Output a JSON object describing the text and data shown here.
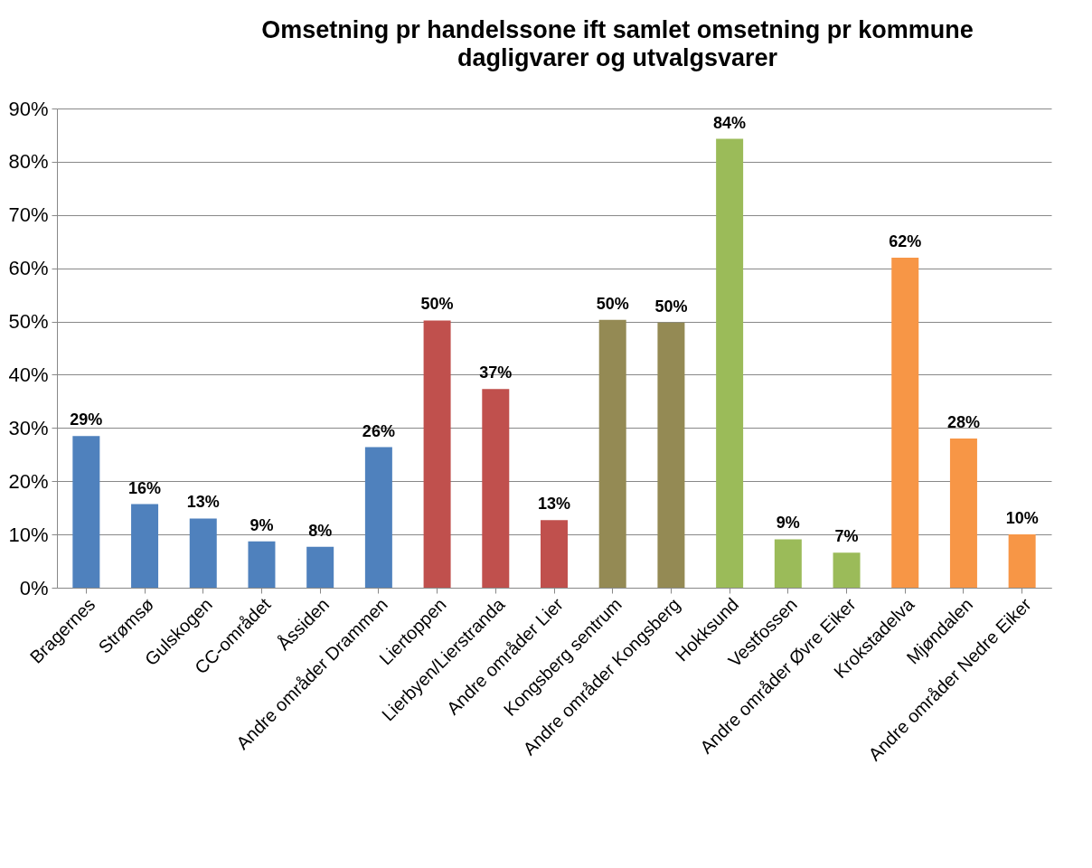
{
  "chart_data": {
    "type": "bar",
    "title": "Omsetning pr handelssone ift samlet omsetning pr kommune",
    "subtitle": "dagligvarer og utvalgsvarer",
    "categories": [
      "Bragernes",
      "Strømsø",
      "Gulskogen",
      "CC-området",
      "Åssiden",
      "Andre områder Drammen",
      "Liertoppen",
      "Lierbyen/Lierstranda",
      "Andre områder Lier",
      "Kongsberg sentrum",
      "Andre områder Kongsberg",
      "Hokksund",
      "Vestfossen",
      "Andre områder Øvre Eiker",
      "Krokstadelva",
      "Mjøndalen",
      "Andre områder Nedre Eiker"
    ],
    "values": [
      28.5,
      15.7,
      13,
      8.7,
      7.7,
      26.4,
      50.2,
      37.3,
      12.7,
      50.3,
      49.8,
      84.3,
      9.1,
      6.6,
      62,
      28,
      10
    ],
    "value_labels": [
      "29%",
      "16%",
      "13%",
      "9%",
      "8%",
      "26%",
      "50%",
      "37%",
      "13%",
      "50%",
      "50%",
      "84%",
      "9%",
      "7%",
      "62%",
      "28%",
      "10%"
    ],
    "colors": [
      "#4f81bd",
      "#4f81bd",
      "#4f81bd",
      "#4f81bd",
      "#4f81bd",
      "#4f81bd",
      "#c0504d",
      "#c0504d",
      "#c0504d",
      "#948a54",
      "#948a54",
      "#9bbb59",
      "#9bbb59",
      "#9bbb59",
      "#f79646",
      "#f79646",
      "#f79646"
    ],
    "ylim": [
      0,
      90
    ],
    "yticks": [
      {
        "value": 0,
        "label": "0%"
      },
      {
        "value": 10,
        "label": "10%"
      },
      {
        "value": 20,
        "label": "20%"
      },
      {
        "value": 30,
        "label": "30%"
      },
      {
        "value": 40,
        "label": "40%"
      },
      {
        "value": 50,
        "label": "50%"
      },
      {
        "value": 60,
        "label": "60%"
      },
      {
        "value": 70,
        "label": "70%"
      },
      {
        "value": 80,
        "label": "80%"
      },
      {
        "value": 90,
        "label": "90%"
      }
    ],
    "grid": true
  }
}
